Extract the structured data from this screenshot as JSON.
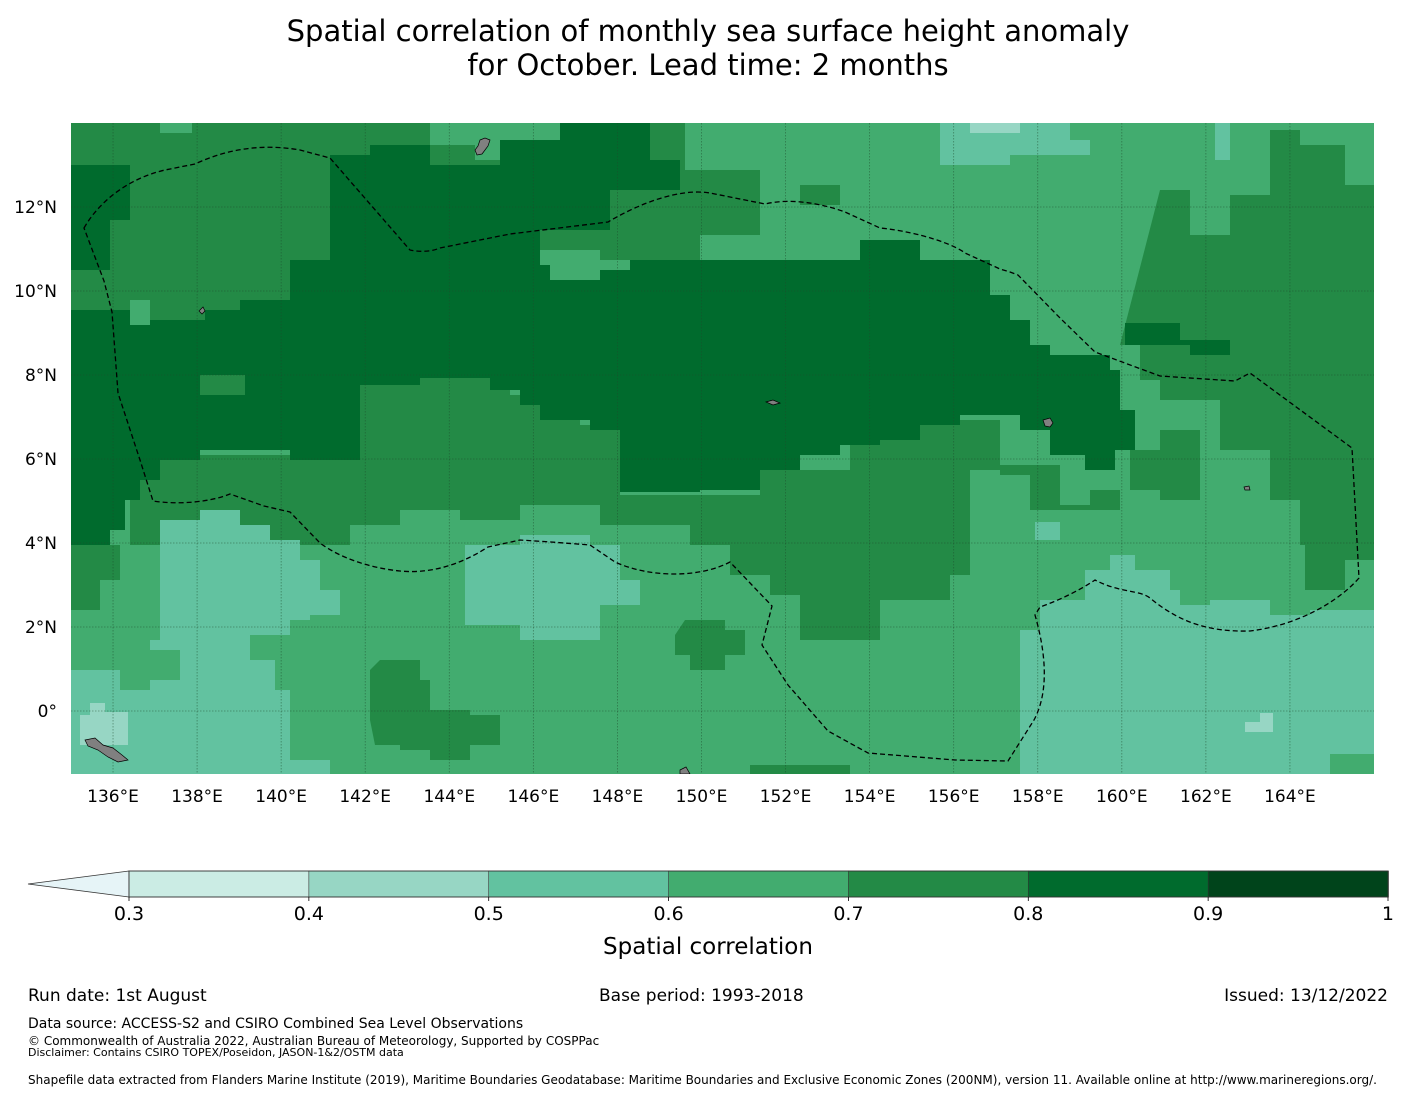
{
  "title": {
    "line1": "Spatial correlation of monthly sea surface height anomaly",
    "line2": "for October. Lead time: 2 months"
  },
  "map": {
    "lon_range": [
      135,
      166
    ],
    "lat_range": [
      -1.5,
      14
    ],
    "lon_ticks": [
      "136°E",
      "138°E",
      "140°E",
      "142°E",
      "144°E",
      "146°E",
      "148°E",
      "150°E",
      "152°E",
      "154°E",
      "156°E",
      "158°E",
      "160°E",
      "162°E",
      "164°E"
    ],
    "lat_ticks": [
      "12°N",
      "10°N",
      "8°N",
      "6°N",
      "4°N",
      "2°N",
      "0°"
    ],
    "background_correlation_colour": "#42ac6f",
    "eez_boundary_style": "dashed"
  },
  "colorbar": {
    "title": "Spatial correlation",
    "extend": "min",
    "tick_labels": [
      "0.3",
      "0.4",
      "0.5",
      "0.6",
      "0.7",
      "0.8",
      "0.9",
      "1"
    ],
    "under_colour": "#e6f4f7",
    "colours": [
      "#cbece4",
      "#97d6c4",
      "#62c2a0",
      "#42ac6f",
      "#238a46",
      "#006b2d",
      "#00441b"
    ]
  },
  "footer": {
    "run_date": "Run date: 1st August",
    "base_period": "Base period: 1993-2018",
    "issued": "Issued: 13/12/2022",
    "data_source": "Data source: ACCESS-S2 and CSIRO Combined Sea Level Observations",
    "copyright": "© Commonwealth of Australia 2022, Australian Bureau of Meteorology, Supported by COSPPac",
    "disclaimer": "Disclaimer: Contains CSIRO TOPEX/Poseidon, JASON-1&2/OSTM data",
    "shapefile": "Shapefile data extracted from Flanders Marine Institute (2019), Maritime Boundaries Geodatabase: Maritime Boundaries and Exclusive Economic Zones (200NM), version 11. Available online at http://www.marineregions.org/."
  }
}
